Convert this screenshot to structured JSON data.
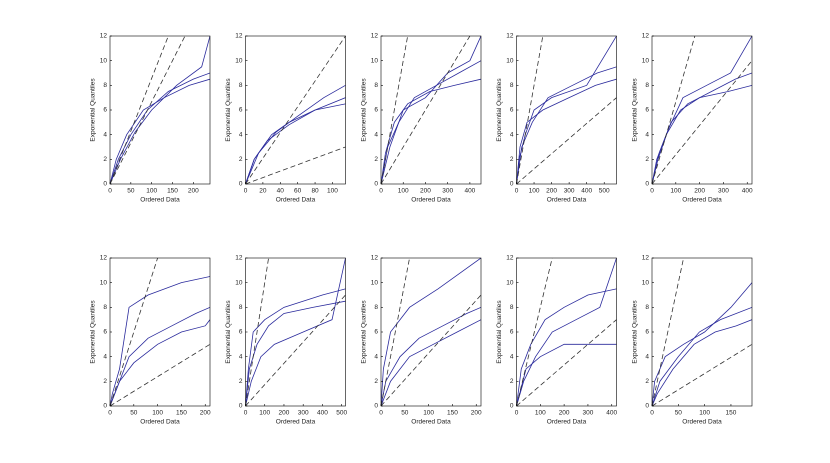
{
  "chart_data": [
    {
      "type": "line",
      "xlabel": "Ordered Data",
      "ylabel": "Exponential Quantiles",
      "xlim": [
        0,
        240
      ],
      "ylim": [
        0,
        12
      ],
      "xticks": [
        0,
        50,
        100,
        150,
        200
      ],
      "yticks": [
        0,
        2,
        4,
        6,
        8,
        10,
        12
      ],
      "series": [
        {
          "color": "#2a2a9c",
          "style": "solid",
          "x": [
            0,
            20,
            50,
            90,
            140,
            200,
            240
          ],
          "y": [
            0,
            2,
            4,
            6,
            7.5,
            8.5,
            9
          ]
        },
        {
          "color": "#2a2a9c",
          "style": "solid",
          "x": [
            0,
            15,
            40,
            80,
            130,
            190,
            240
          ],
          "y": [
            0,
            2,
            4,
            6,
            7,
            8,
            8.5
          ]
        },
        {
          "color": "#2a2a9c",
          "style": "solid",
          "x": [
            0,
            25,
            60,
            100,
            160,
            220,
            240
          ],
          "y": [
            0,
            2,
            4.2,
            6,
            8,
            9.5,
            12
          ]
        },
        {
          "color": "#333333",
          "style": "dashed",
          "x": [
            0,
            140
          ],
          "y": [
            0,
            12
          ]
        },
        {
          "color": "#333333",
          "style": "dashed",
          "x": [
            0,
            180
          ],
          "y": [
            0,
            12
          ]
        }
      ]
    },
    {
      "type": "line",
      "xlabel": "Ordered Data",
      "ylabel": "Exponential Quantiles",
      "xlim": [
        0,
        115
      ],
      "ylim": [
        0,
        12
      ],
      "xticks": [
        0,
        20,
        40,
        60,
        80,
        100
      ],
      "yticks": [
        0,
        2,
        4,
        6,
        8,
        10,
        12
      ],
      "series": [
        {
          "color": "#2a2a9c",
          "style": "solid",
          "x": [
            0,
            10,
            30,
            50,
            80,
            115
          ],
          "y": [
            0,
            2,
            4,
            5,
            6,
            7
          ]
        },
        {
          "color": "#2a2a9c",
          "style": "solid",
          "x": [
            0,
            10,
            25,
            50,
            80,
            115
          ],
          "y": [
            0,
            2,
            3.5,
            4.8,
            6,
            6.5
          ]
        },
        {
          "color": "#2a2a9c",
          "style": "solid",
          "x": [
            0,
            15,
            35,
            60,
            90,
            115
          ],
          "y": [
            0,
            2.5,
            4.2,
            5.5,
            7,
            8
          ]
        },
        {
          "color": "#333333",
          "style": "dashed",
          "x": [
            0,
            115
          ],
          "y": [
            0,
            3
          ]
        },
        {
          "color": "#333333",
          "style": "dashed",
          "x": [
            0,
            115
          ],
          "y": [
            0,
            12
          ]
        }
      ]
    },
    {
      "type": "line",
      "xlabel": "Ordered Data",
      "ylabel": "Exponential Quantiles",
      "xlim": [
        0,
        450
      ],
      "ylim": [
        0,
        12
      ],
      "xticks": [
        0,
        100,
        200,
        300,
        400
      ],
      "yticks": [
        0,
        2,
        4,
        6,
        8,
        10,
        12
      ],
      "series": [
        {
          "color": "#2a2a9c",
          "style": "solid",
          "x": [
            0,
            30,
            80,
            150,
            250,
            350,
            450
          ],
          "y": [
            0,
            3,
            5,
            7,
            8,
            9,
            10
          ]
        },
        {
          "color": "#2a2a9c",
          "style": "solid",
          "x": [
            0,
            20,
            60,
            120,
            220,
            330,
            450
          ],
          "y": [
            0,
            2.5,
            5,
            6.5,
            7.5,
            8,
            8.5
          ]
        },
        {
          "color": "#2a2a9c",
          "style": "solid",
          "x": [
            0,
            40,
            100,
            200,
            300,
            400,
            450
          ],
          "y": [
            0,
            3,
            6,
            7,
            9,
            10,
            12
          ]
        },
        {
          "color": "#333333",
          "style": "dashed",
          "x": [
            0,
            120
          ],
          "y": [
            0,
            12
          ]
        },
        {
          "color": "#333333",
          "style": "dashed",
          "x": [
            0,
            400
          ],
          "y": [
            0,
            12
          ]
        }
      ]
    },
    {
      "type": "line",
      "xlabel": "Ordered Data",
      "ylabel": "Exponential Quantiles",
      "xlim": [
        0,
        570
      ],
      "ylim": [
        0,
        12
      ],
      "xticks": [
        0,
        100,
        200,
        300,
        400,
        500
      ],
      "yticks": [
        0,
        2,
        4,
        6,
        8,
        10,
        12
      ],
      "series": [
        {
          "color": "#2a2a9c",
          "style": "solid",
          "x": [
            0,
            20,
            60,
            150,
            300,
            450,
            570
          ],
          "y": [
            0,
            3,
            5,
            6,
            7,
            8,
            8.5
          ]
        },
        {
          "color": "#2a2a9c",
          "style": "solid",
          "x": [
            0,
            30,
            90,
            180,
            320,
            460,
            570
          ],
          "y": [
            0,
            3,
            5,
            7,
            8,
            9,
            9.5
          ]
        },
        {
          "color": "#2a2a9c",
          "style": "solid",
          "x": [
            0,
            15,
            50,
            100,
            200,
            400,
            570
          ],
          "y": [
            0,
            2,
            4,
            6,
            7,
            8,
            12
          ]
        },
        {
          "color": "#333333",
          "style": "dashed",
          "x": [
            0,
            150
          ],
          "y": [
            0,
            12
          ]
        },
        {
          "color": "#333333",
          "style": "dashed",
          "x": [
            0,
            570
          ],
          "y": [
            0,
            7
          ]
        }
      ]
    },
    {
      "type": "line",
      "xlabel": "Ordered Data",
      "ylabel": "Exponential Quantiles",
      "xlim": [
        0,
        420
      ],
      "ylim": [
        0,
        12
      ],
      "xticks": [
        0,
        100,
        200,
        300,
        400
      ],
      "yticks": [
        0,
        2,
        4,
        6,
        8,
        10,
        12
      ],
      "series": [
        {
          "color": "#2a2a9c",
          "style": "solid",
          "x": [
            0,
            20,
            60,
            120,
            200,
            320,
            420
          ],
          "y": [
            0,
            2,
            4,
            6,
            7,
            7.5,
            8
          ]
        },
        {
          "color": "#2a2a9c",
          "style": "solid",
          "x": [
            0,
            30,
            80,
            150,
            250,
            350,
            420
          ],
          "y": [
            0,
            2.5,
            5,
            6.5,
            7.5,
            8.5,
            9
          ]
        },
        {
          "color": "#2a2a9c",
          "style": "solid",
          "x": [
            0,
            25,
            70,
            130,
            230,
            330,
            420
          ],
          "y": [
            0,
            2,
            4.5,
            7,
            8,
            9,
            12
          ]
        },
        {
          "color": "#333333",
          "style": "dashed",
          "x": [
            0,
            180
          ],
          "y": [
            0,
            12
          ]
        },
        {
          "color": "#333333",
          "style": "dashed",
          "x": [
            0,
            420
          ],
          "y": [
            0,
            10
          ]
        }
      ]
    },
    {
      "type": "line",
      "xlabel": "Ordered Data",
      "ylabel": "Exponential Quantiles",
      "xlim": [
        0,
        210
      ],
      "ylim": [
        0,
        12
      ],
      "xticks": [
        0,
        50,
        100,
        150,
        200
      ],
      "yticks": [
        0,
        2,
        4,
        6,
        8,
        10,
        12
      ],
      "series": [
        {
          "color": "#2a2a9c",
          "style": "solid",
          "x": [
            0,
            10,
            40,
            80,
            130,
            180,
            210
          ],
          "y": [
            0,
            1,
            4,
            5.5,
            6.5,
            7.5,
            8
          ]
        },
        {
          "color": "#2a2a9c",
          "style": "solid",
          "x": [
            0,
            20,
            50,
            100,
            150,
            200,
            210
          ],
          "y": [
            0,
            2,
            3.5,
            5,
            6,
            6.5,
            7
          ]
        },
        {
          "color": "#2a2a9c",
          "style": "solid",
          "x": [
            0,
            5,
            20,
            40,
            80,
            150,
            210
          ],
          "y": [
            0,
            1,
            3,
            8,
            9,
            10,
            10.5
          ]
        },
        {
          "color": "#333333",
          "style": "dashed",
          "x": [
            0,
            210
          ],
          "y": [
            0,
            5
          ]
        },
        {
          "color": "#333333",
          "style": "dashed",
          "x": [
            0,
            100
          ],
          "y": [
            0,
            12
          ]
        }
      ]
    },
    {
      "type": "line",
      "xlabel": "Ordered Data",
      "ylabel": "Exponential Quantiles",
      "xlim": [
        0,
        520
      ],
      "ylim": [
        0,
        12
      ],
      "xticks": [
        0,
        100,
        200,
        300,
        400,
        500
      ],
      "yticks": [
        0,
        2,
        4,
        6,
        8,
        10,
        12
      ],
      "series": [
        {
          "color": "#2a2a9c",
          "style": "solid",
          "x": [
            0,
            20,
            60,
            120,
            200,
            350,
            520
          ],
          "y": [
            0,
            3,
            5,
            6.5,
            7.5,
            8,
            8.5
          ]
        },
        {
          "color": "#2a2a9c",
          "style": "solid",
          "x": [
            0,
            30,
            80,
            150,
            300,
            450,
            520
          ],
          "y": [
            0,
            2,
            4,
            5,
            6,
            7,
            12
          ]
        },
        {
          "color": "#2a2a9c",
          "style": "solid",
          "x": [
            0,
            15,
            40,
            100,
            200,
            400,
            520
          ],
          "y": [
            0,
            3,
            6,
            7,
            8,
            9,
            9.5
          ]
        },
        {
          "color": "#333333",
          "style": "dashed",
          "x": [
            0,
            120
          ],
          "y": [
            0,
            12
          ]
        },
        {
          "color": "#333333",
          "style": "dashed",
          "x": [
            0,
            520
          ],
          "y": [
            0,
            9
          ]
        }
      ]
    },
    {
      "type": "line",
      "xlabel": "Ordered Data",
      "ylabel": "Exponential Quantiles",
      "xlim": [
        0,
        210
      ],
      "ylim": [
        0,
        12
      ],
      "xticks": [
        0,
        50,
        100,
        150,
        200
      ],
      "yticks": [
        0,
        2,
        4,
        6,
        8,
        10,
        12
      ],
      "series": [
        {
          "color": "#2a2a9c",
          "style": "solid",
          "x": [
            0,
            10,
            40,
            80,
            130,
            180,
            210
          ],
          "y": [
            0,
            2,
            4,
            5.5,
            6.5,
            7.5,
            8
          ]
        },
        {
          "color": "#2a2a9c",
          "style": "solid",
          "x": [
            0,
            20,
            60,
            110,
            160,
            210
          ],
          "y": [
            0,
            2,
            4,
            5,
            6,
            7
          ]
        },
        {
          "color": "#2a2a9c",
          "style": "solid",
          "x": [
            0,
            5,
            20,
            60,
            120,
            210
          ],
          "y": [
            0,
            3,
            6,
            8,
            9.5,
            12
          ]
        },
        {
          "color": "#333333",
          "style": "dashed",
          "x": [
            0,
            210
          ],
          "y": [
            0,
            9
          ]
        },
        {
          "color": "#333333",
          "style": "dashed",
          "x": [
            0,
            60
          ],
          "y": [
            0,
            12
          ]
        }
      ]
    },
    {
      "type": "line",
      "xlabel": "Ordered Data",
      "ylabel": "Exponential Quantiles",
      "xlim": [
        0,
        420
      ],
      "ylim": [
        0,
        12
      ],
      "xticks": [
        0,
        100,
        200,
        300,
        400
      ],
      "yticks": [
        0,
        2,
        4,
        6,
        8,
        10,
        12
      ],
      "series": [
        {
          "color": "#2a2a9c",
          "style": "solid",
          "x": [
            0,
            20,
            60,
            120,
            200,
            300,
            420
          ],
          "y": [
            0,
            3,
            5,
            7,
            8,
            9,
            9.5
          ]
        },
        {
          "color": "#2a2a9c",
          "style": "solid",
          "x": [
            0,
            30,
            80,
            150,
            250,
            350,
            420
          ],
          "y": [
            0,
            2,
            4,
            6,
            7,
            8,
            12
          ]
        },
        {
          "color": "#2a2a9c",
          "style": "solid",
          "x": [
            0,
            40,
            100,
            200,
            300,
            420
          ],
          "y": [
            0,
            3,
            4,
            5,
            5,
            5
          ]
        },
        {
          "color": "#333333",
          "style": "dashed",
          "x": [
            0,
            150
          ],
          "y": [
            0,
            12
          ]
        },
        {
          "color": "#333333",
          "style": "dashed",
          "x": [
            0,
            420
          ],
          "y": [
            0,
            7
          ]
        }
      ]
    },
    {
      "type": "line",
      "xlabel": "Ordered Data",
      "ylabel": "Exponential Quantiles",
      "xlim": [
        0,
        190
      ],
      "ylim": [
        0,
        12
      ],
      "xticks": [
        0,
        50,
        100,
        150
      ],
      "yticks": [
        0,
        2,
        4,
        6,
        8,
        10,
        12
      ],
      "series": [
        {
          "color": "#2a2a9c",
          "style": "solid",
          "x": [
            0,
            10,
            40,
            80,
            120,
            160,
            190
          ],
          "y": [
            0,
            1,
            3,
            5,
            6,
            6.5,
            7
          ]
        },
        {
          "color": "#2a2a9c",
          "style": "solid",
          "x": [
            0,
            15,
            50,
            90,
            130,
            190
          ],
          "y": [
            0,
            2,
            4,
            6,
            7,
            8
          ]
        },
        {
          "color": "#2a2a9c",
          "style": "solid",
          "x": [
            0,
            5,
            25,
            60,
            100,
            150,
            190
          ],
          "y": [
            0,
            2,
            4,
            5,
            6,
            8,
            10
          ]
        },
        {
          "color": "#333333",
          "style": "dashed",
          "x": [
            0,
            60
          ],
          "y": [
            0,
            12
          ]
        },
        {
          "color": "#333333",
          "style": "dashed",
          "x": [
            0,
            190
          ],
          "y": [
            0,
            5
          ]
        }
      ]
    }
  ]
}
